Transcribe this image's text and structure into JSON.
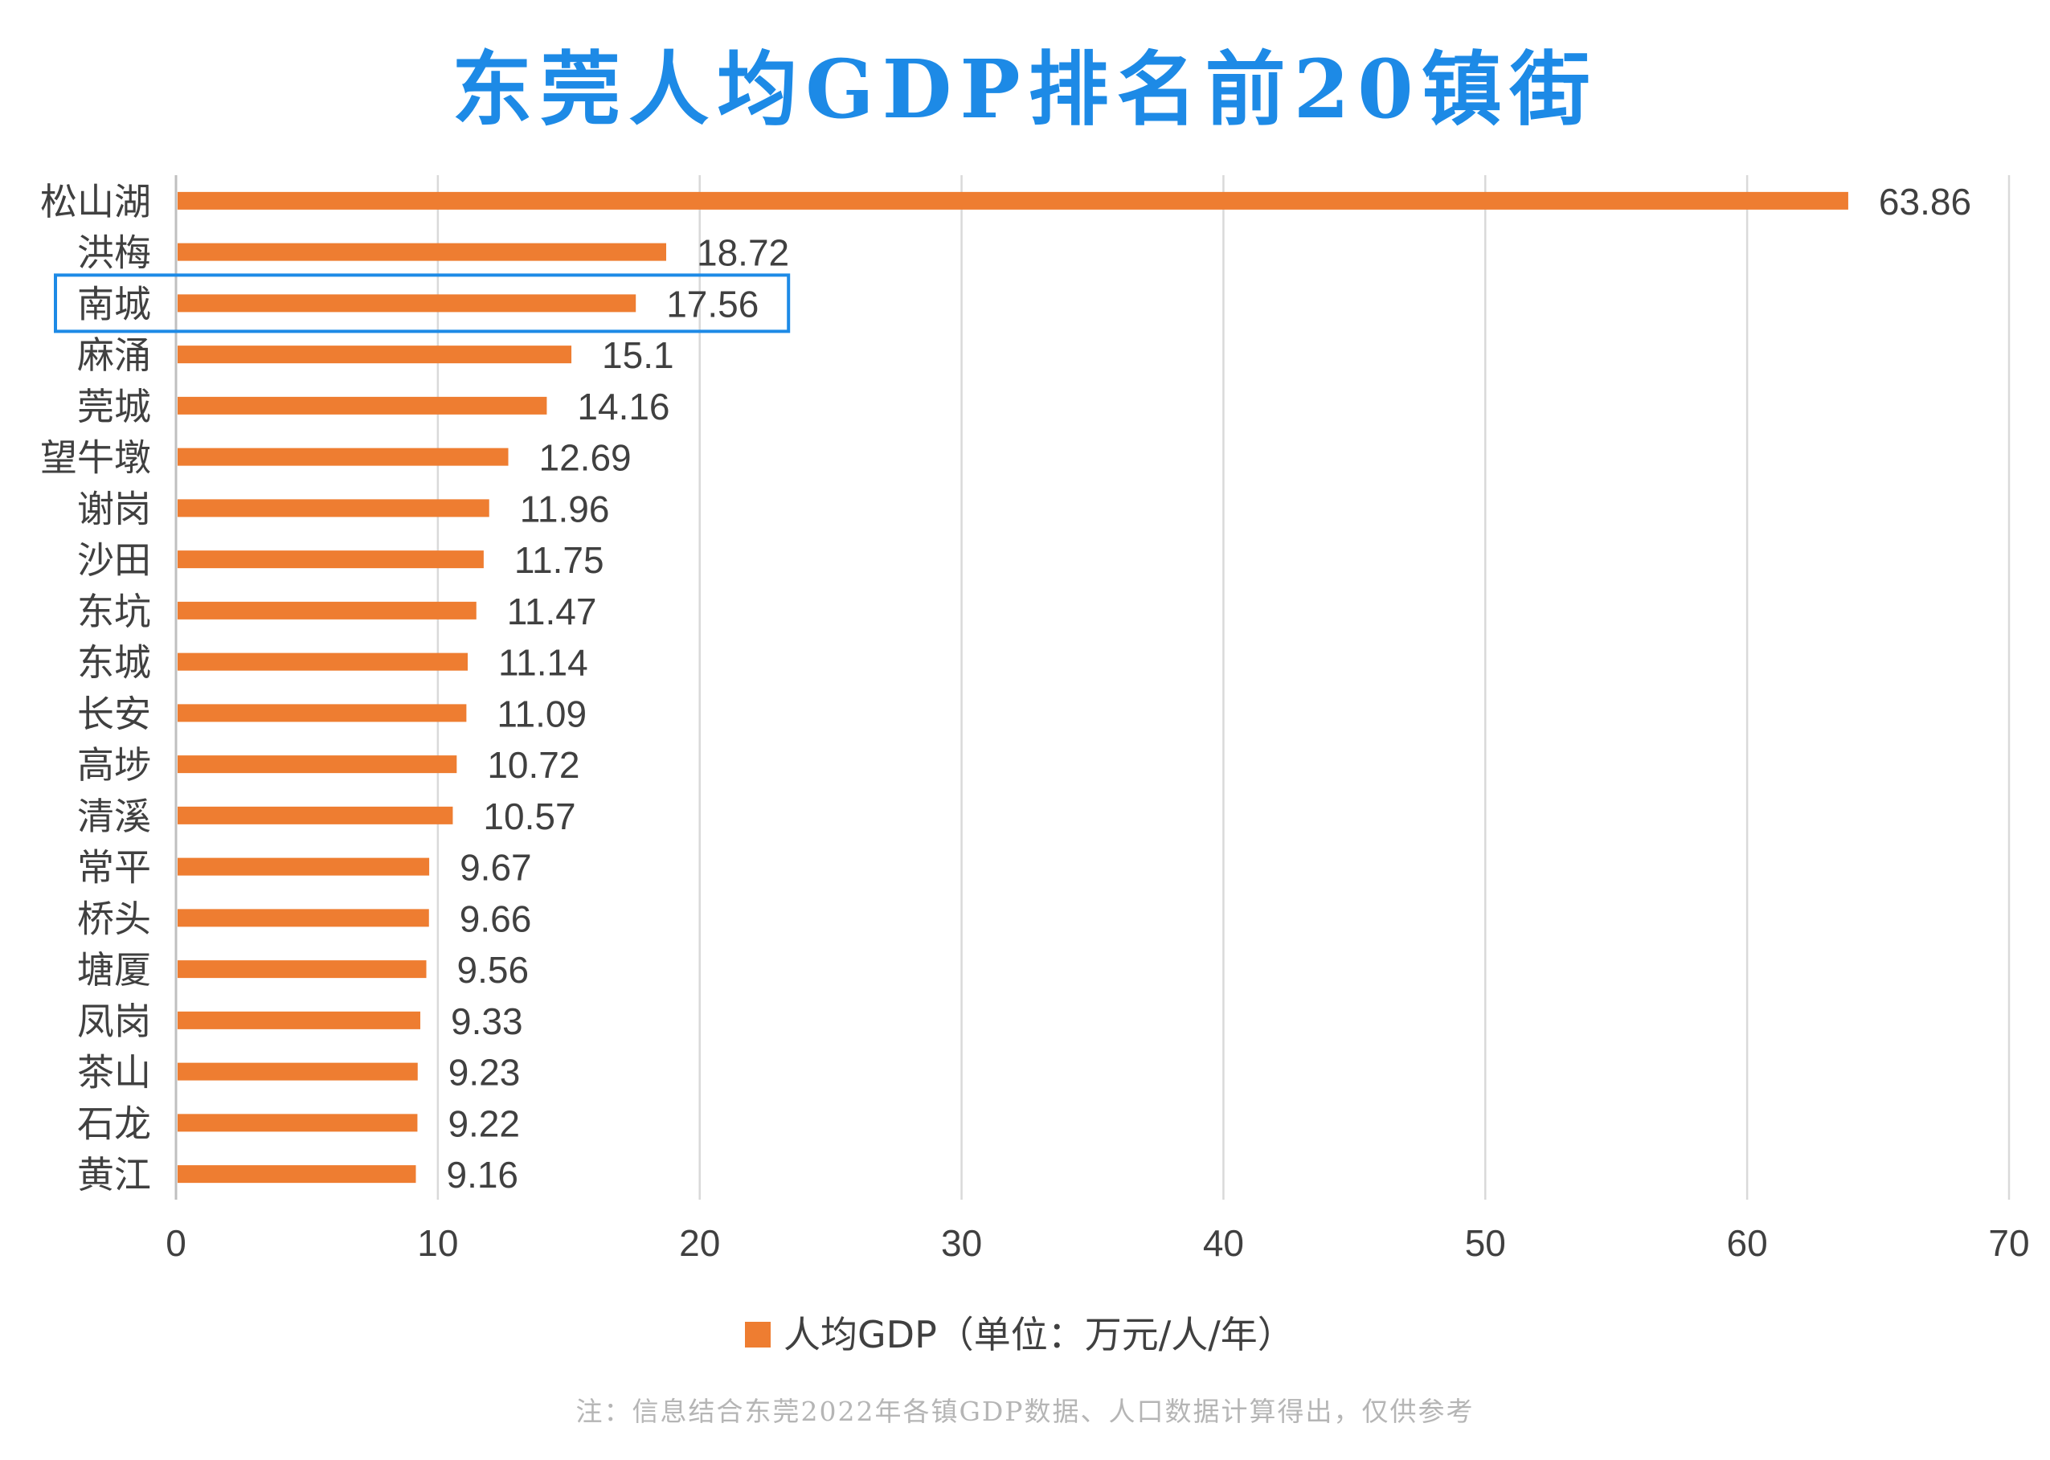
{
  "title": "东莞人均GDP排名前20镇街",
  "note": "注：信息结合东莞2022年各镇GDP数据、人口数据计算得出，仅供参考",
  "colors": {
    "title": "#1d8ae6",
    "bar": "#ee7d31",
    "highlight": "#1d8ae6",
    "grid": "#d9d9d9",
    "text": "#404040"
  },
  "legend": {
    "label": "人均GDP（单位：万元/人/年）",
    "position": "bottom"
  },
  "chart_data": {
    "type": "bar",
    "orientation": "horizontal",
    "categories": [
      "松山湖",
      "洪梅",
      "南城",
      "麻涌",
      "莞城",
      "望牛墩",
      "谢岗",
      "沙田",
      "东坑",
      "东城",
      "长安",
      "高埗",
      "清溪",
      "常平",
      "桥头",
      "塘厦",
      "凤岗",
      "茶山",
      "石龙",
      "黄江"
    ],
    "series": [
      {
        "name": "人均GDP（单位：万元/人/年）",
        "values": [
          63.86,
          18.72,
          17.56,
          15.1,
          14.16,
          12.69,
          11.96,
          11.75,
          11.47,
          11.14,
          11.09,
          10.72,
          10.57,
          9.67,
          9.66,
          9.56,
          9.33,
          9.23,
          9.22,
          9.16
        ]
      }
    ],
    "data_labels": [
      "63.86",
      "18.72",
      "17.56",
      "15.1",
      "14.16",
      "12.69",
      "11.96",
      "11.75",
      "11.47",
      "11.14",
      "11.09",
      "10.72",
      "10.57",
      "9.67",
      "9.66",
      "9.56",
      "9.33",
      "9.23",
      "9.22",
      "9.16"
    ],
    "xlim": [
      0,
      70
    ],
    "xticks": [
      "0",
      "10",
      "20",
      "30",
      "40",
      "50",
      "60",
      "70"
    ],
    "grid": true,
    "highlighted_category": "南城"
  }
}
